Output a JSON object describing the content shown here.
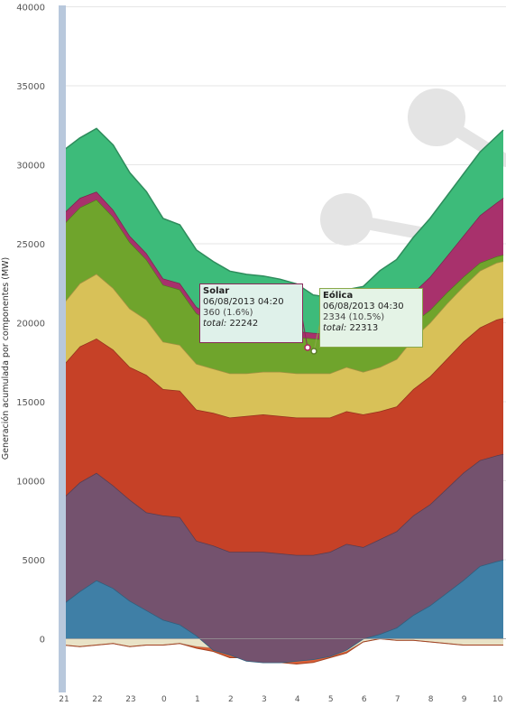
{
  "chart_data": {
    "type": "area",
    "stacked": true,
    "title": "",
    "ylabel": "Generación acumulada por componentes (MW)",
    "xlabel": "",
    "ylim": [
      -2000,
      40000
    ],
    "yticks": [
      0,
      5000,
      10000,
      15000,
      20000,
      25000,
      30000,
      35000,
      40000
    ],
    "grid": true,
    "x_tick_labels": [
      "21",
      "22",
      "23",
      "0",
      "1",
      "2",
      "3",
      "4",
      "5",
      "6",
      "7",
      "8",
      "9",
      "10"
    ],
    "x_tick_hours": [
      21,
      22,
      23,
      24,
      25,
      26,
      27,
      28,
      29,
      30,
      31,
      32,
      33,
      34
    ],
    "x_range_hours": [
      21,
      34.2
    ],
    "x": [
      21.0,
      21.5,
      22.0,
      22.5,
      23.0,
      23.5,
      24.0,
      24.5,
      25.0,
      25.5,
      26.0,
      26.5,
      27.0,
      27.5,
      28.0,
      28.5,
      29.0,
      29.5,
      30.0,
      30.5,
      31.0,
      31.5,
      32.0,
      32.5,
      33.0,
      33.5,
      34.0,
      34.2
    ],
    "negative_series": [
      {
        "name": "",
        "color": "#e8e2c4",
        "values": [
          -400,
          -500,
          -400,
          -300,
          -500,
          -400,
          -400,
          -300,
          -500,
          -600,
          -900,
          -1000,
          -1200,
          -1300,
          -1400,
          -1300,
          -1100,
          -800,
          -200,
          0,
          -100,
          -100,
          -200,
          -300,
          -400,
          -400,
          -400,
          -400
        ]
      },
      {
        "name": "",
        "color": "#d9572c",
        "values": [
          0,
          0,
          0,
          0,
          0,
          0,
          0,
          0,
          -100,
          -200,
          -300,
          -200,
          -200,
          -200,
          -200,
          -200,
          -100,
          -100,
          0,
          0,
          0,
          0,
          0,
          0,
          0,
          0,
          0,
          0
        ]
      }
    ],
    "series": [
      {
        "name": "",
        "color": "#3f7fa6",
        "values": [
          2200,
          3000,
          3700,
          3200,
          2400,
          1800,
          1200,
          900,
          200,
          -700,
          -1000,
          -1400,
          -1500,
          -1500,
          -1400,
          -1300,
          -1100,
          -700,
          0,
          300,
          700,
          1500,
          2100,
          2900,
          3700,
          4600,
          4900,
          5000
        ]
      },
      {
        "name": "",
        "color": "#74526e",
        "values": [
          6700,
          6900,
          6800,
          6500,
          6400,
          6200,
          6600,
          6800,
          6000,
          6600,
          6500,
          6900,
          7000,
          6900,
          6700,
          6600,
          6600,
          6700,
          5800,
          6000,
          6100,
          6300,
          6400,
          6600,
          6800,
          6700,
          6700,
          6700
        ]
      },
      {
        "name": "",
        "color": "#c64127",
        "values": [
          8400,
          8600,
          8500,
          8600,
          8400,
          8700,
          8000,
          8000,
          8300,
          8400,
          8500,
          8600,
          8700,
          8700,
          8700,
          8700,
          8500,
          8400,
          8400,
          8100,
          7900,
          8000,
          8100,
          8200,
          8300,
          8400,
          8600,
          8600
        ]
      },
      {
        "name": "",
        "color": "#d8c158",
        "values": [
          3900,
          4000,
          4100,
          3900,
          3700,
          3500,
          3000,
          2900,
          2900,
          2800,
          2800,
          2700,
          2700,
          2800,
          2800,
          2800,
          2800,
          2800,
          2700,
          2800,
          3000,
          3200,
          3400,
          3500,
          3500,
          3600,
          3600,
          3600
        ]
      },
      {
        "name": "",
        "color": "#6fa42c",
        "values": [
          5000,
          4800,
          4700,
          4500,
          4200,
          3800,
          3600,
          3500,
          3200,
          2900,
          2700,
          2600,
          2500,
          2400,
          2300,
          2200,
          2100,
          2000,
          1900,
          1800,
          1300,
          1000,
          800,
          700,
          600,
          500,
          400,
          400
        ]
      },
      {
        "name": "",
        "color": "#a8316c",
        "values": [
          700,
          600,
          500,
          450,
          400,
          400,
          400,
          400,
          400,
          380,
          370,
          360,
          360,
          360,
          360,
          360,
          400,
          600,
          1000,
          1500,
          1700,
          1900,
          2100,
          2300,
          2600,
          3000,
          3400,
          3600
        ]
      },
      {
        "name": "Eólica",
        "color": "#3dbb7a",
        "values": [
          4000,
          3800,
          4000,
          4100,
          4000,
          3900,
          3800,
          3700,
          3600,
          3500,
          3400,
          3300,
          3200,
          3100,
          3000,
          2400,
          2300,
          2300,
          2500,
          2800,
          3300,
          3500,
          3700,
          3800,
          3900,
          4000,
          4200,
          4300
        ]
      }
    ]
  },
  "tooltips": [
    {
      "title": "Solar",
      "datetime": "06/08/2013 04:20",
      "value": "360 (1.6%)",
      "total_label": "total:",
      "total_value": "22242",
      "bg": "#dff1ea",
      "border": "#8a2a5a"
    },
    {
      "title": "Eólica",
      "datetime": "06/08/2013 04:30",
      "value": "2334 (10.5%)",
      "total_label": "total:",
      "total_value": "22313",
      "bg": "#e4f3e6",
      "border": "#8aa84a"
    }
  ],
  "colors": {
    "grid": "#e6e6e6",
    "axis_bar": "#b8c8dc",
    "ghost": "#e4e4e4"
  }
}
